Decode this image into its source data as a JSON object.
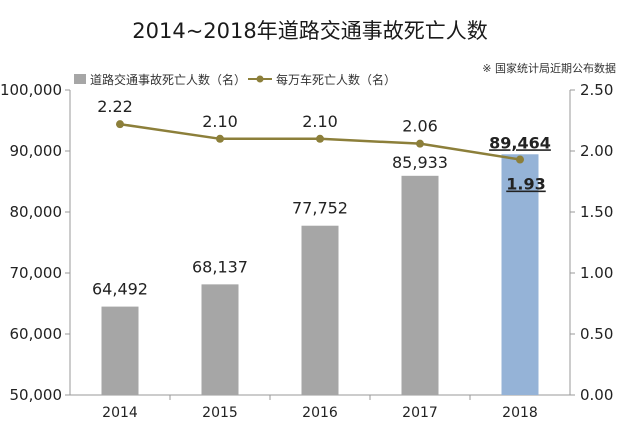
{
  "chart_data": {
    "type": "bar",
    "title": "2014~2018年道路交通事故死亡人数",
    "source": "※ 国家统计局近期公布数据",
    "categories": [
      "2014",
      "2015",
      "2016",
      "2017",
      "2018"
    ],
    "series": [
      {
        "name": "道路交通事故死亡人数（名）",
        "type": "bar",
        "axis": "left",
        "values": [
          64492,
          68137,
          77752,
          85933,
          89464
        ],
        "labels": [
          "64,492",
          "68,137",
          "77,752",
          "85,933",
          "89,464"
        ],
        "color": "#a6a6a6",
        "highlight_color": "#95b3d7"
      },
      {
        "name": "每万车死亡人数（名）",
        "type": "line",
        "axis": "right",
        "values": [
          2.22,
          2.1,
          2.1,
          2.06,
          1.93
        ],
        "labels": [
          "2.22",
          "2.10",
          "2.10",
          "2.06",
          "1.93"
        ],
        "color": "#8c7f3a"
      }
    ],
    "y_left": {
      "ylim": [
        50000,
        100000
      ],
      "ticks": [
        50000,
        60000,
        70000,
        80000,
        90000,
        100000
      ],
      "tick_labels": [
        "50,000",
        "60,000",
        "70,000",
        "80,000",
        "90,000",
        "100,000"
      ]
    },
    "y_right": {
      "ylim": [
        0,
        2.5
      ],
      "ticks": [
        0,
        0.5,
        1.0,
        1.5,
        2.0,
        2.5
      ],
      "tick_labels": [
        "0.00",
        "0.50",
        "1.00",
        "1.50",
        "2.00",
        "2.50"
      ]
    },
    "highlight_index": 4,
    "legend_position": "top",
    "grid": false
  }
}
